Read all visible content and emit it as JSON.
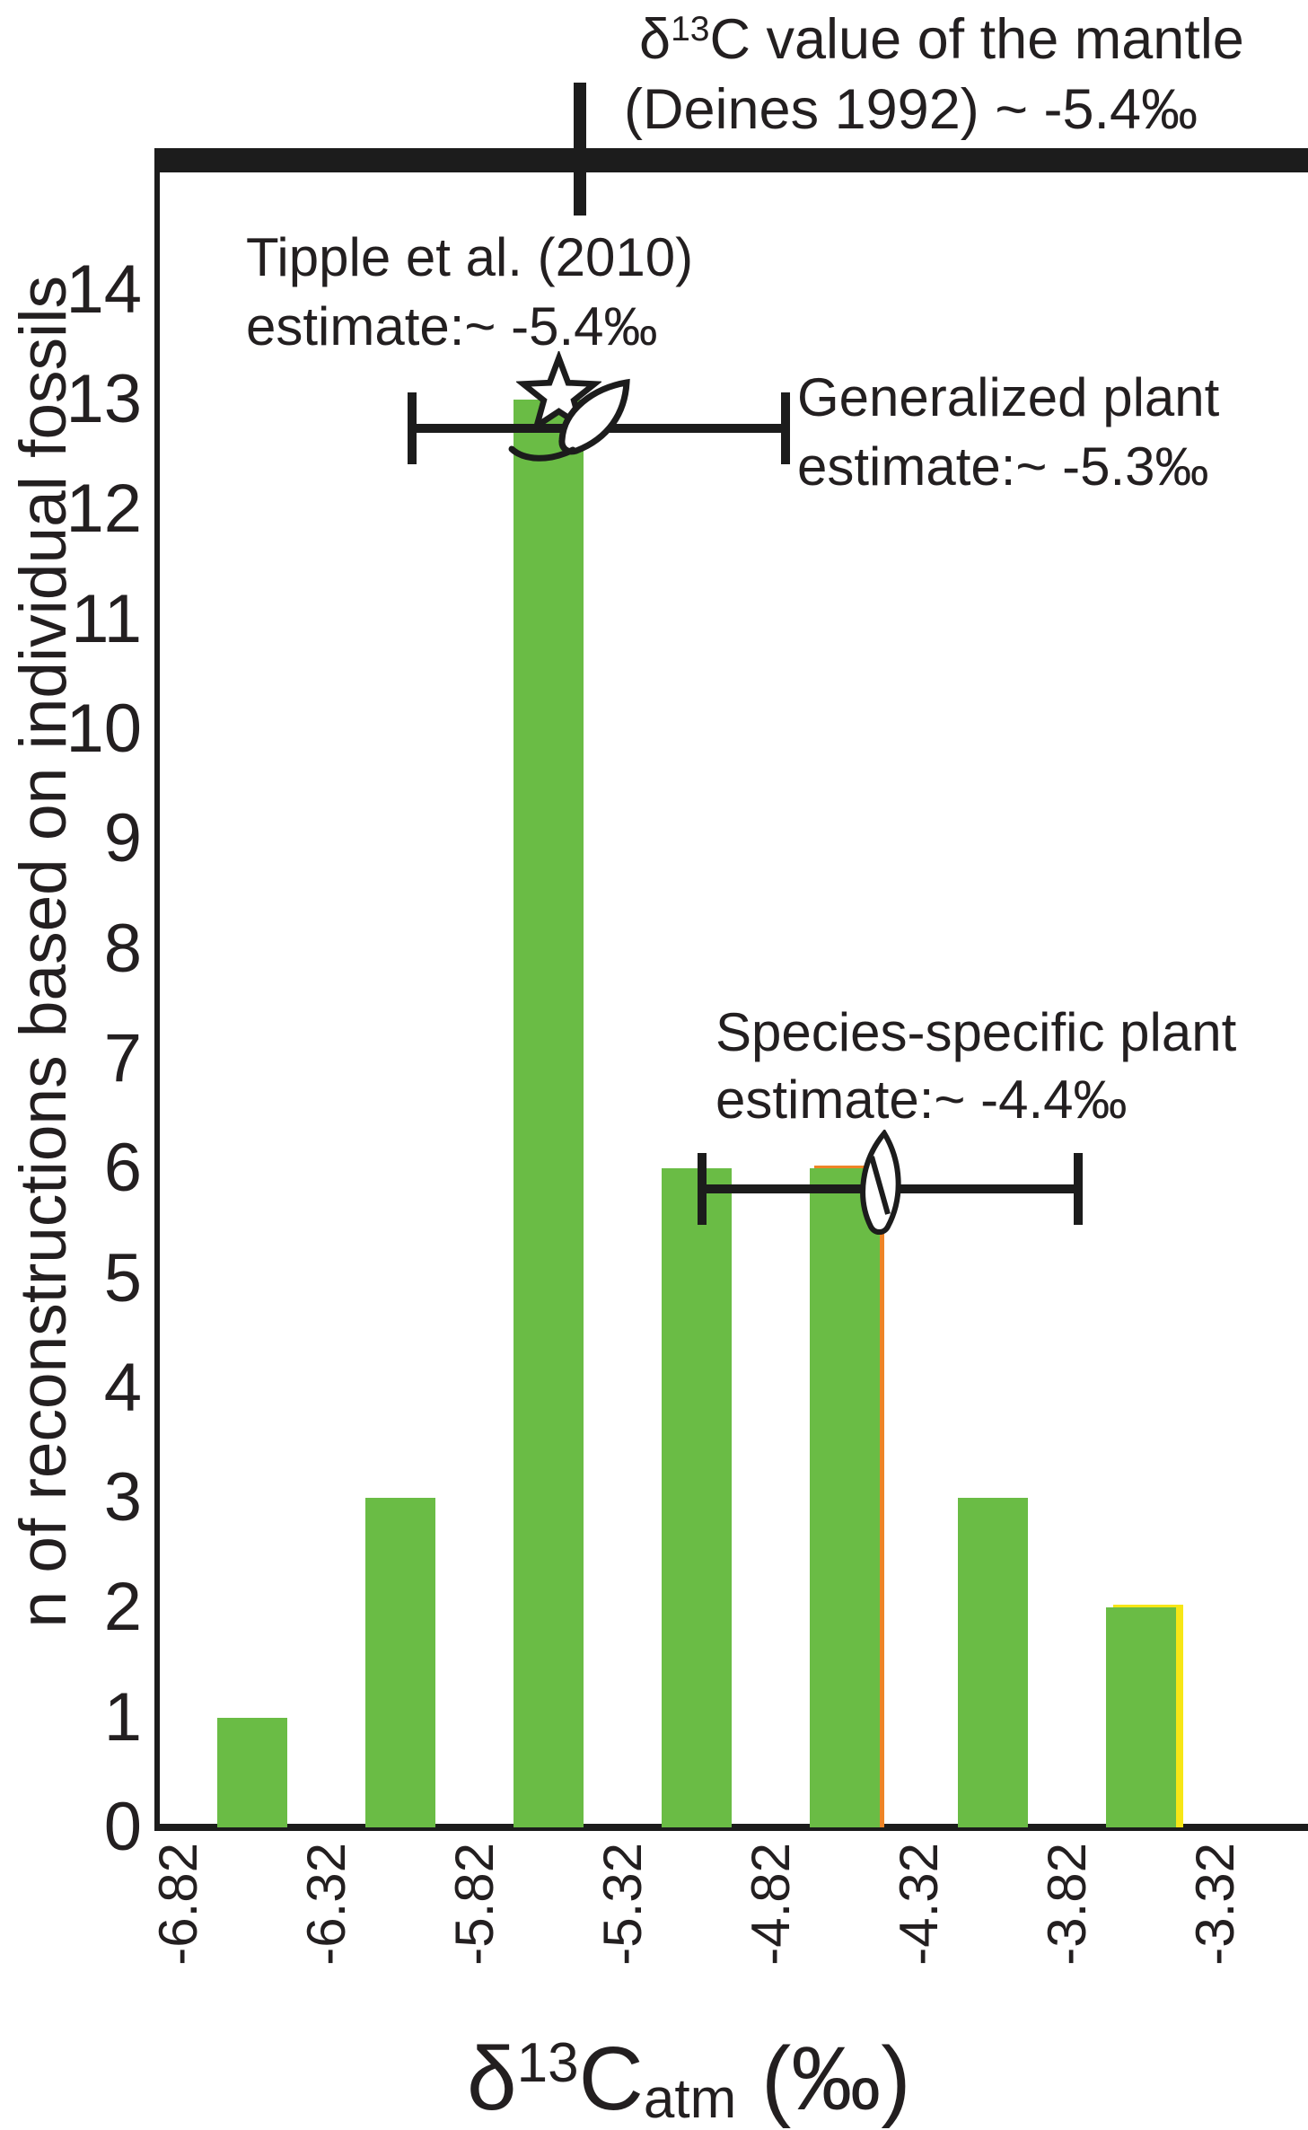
{
  "header": {
    "line1_delta": "δ",
    "line1_sup": "13",
    "line1_rest": "C value of the mantle",
    "line2": "(Deines 1992) ~ -5.4‰"
  },
  "tipple": {
    "line1": "Tipple et al. (2010)",
    "line2": "estimate:~ -5.4‰"
  },
  "generalized": {
    "line1": "Generalized plant",
    "line2": "estimate:~ -5.3‰"
  },
  "species": {
    "line1": "Species-specific plant",
    "line2": "estimate:~ -4.4‰"
  },
  "xlabel_parts": {
    "delta": "δ",
    "sup": "13",
    "c": "C",
    "sub": "atm",
    "rest": " (‰)"
  },
  "ylabel": "n of reconstructions based on individual fossils",
  "colors": {
    "bar_green": "#6abc45",
    "overlay_orange": "#ee8426",
    "overlay_yellow": "#f6e616",
    "ink": "#1c1c1c"
  },
  "chart_data": {
    "type": "bar",
    "title": "δ13C value of the mantle (Deines 1992) ~ -5.4‰",
    "xlabel": "δ13Catm (‰)",
    "ylabel": "n of reconstructions based on individual fossils",
    "bin_edges": [
      -6.82,
      -6.32,
      -5.82,
      -5.32,
      -4.82,
      -4.32,
      -3.82,
      -3.32
    ],
    "x_tick_labels": [
      "-6.82",
      "-6.32",
      "-5.82",
      "-5.32",
      "-4.82",
      "-4.32",
      "-3.82",
      "-3.32"
    ],
    "counts": [
      1,
      3,
      13,
      6,
      6,
      3,
      2
    ],
    "y_ticks": [
      0,
      1,
      2,
      3,
      4,
      5,
      6,
      7,
      8,
      9,
      10,
      11,
      12,
      13,
      14
    ],
    "ylim": [
      0,
      15.3
    ],
    "xlim": [
      -6.89,
      -3.0
    ],
    "grid": false,
    "overlay_bars": [
      {
        "bin": 4,
        "count": 6,
        "color_key": "overlay_orange",
        "name": "orange-overlay-bar"
      },
      {
        "bin": 6,
        "count": 2,
        "color_key": "overlay_yellow",
        "name": "yellow-overlay-bar"
      }
    ],
    "mantle_line_value": -5.4,
    "estimates": [
      {
        "id": "mantle",
        "label": "δ13C value of the mantle (Deines 1992)",
        "value": -5.4
      },
      {
        "id": "tipple",
        "label": "Tipple et al. (2010) estimate",
        "value": -5.4,
        "marker": "star"
      },
      {
        "id": "generalized",
        "label": "Generalized plant estimate",
        "value": -5.3,
        "marker": "leaf"
      },
      {
        "id": "species",
        "label": "Species-specific plant estimate",
        "value": -4.4,
        "marker": "leaf"
      }
    ],
    "error_bars": [
      {
        "label": "generalized-plant",
        "x_min": -6.03,
        "x_max": -4.77,
        "y": 12.74
      },
      {
        "label": "species-specific-plant",
        "x_min": -5.05,
        "x_max": -3.78,
        "y": 5.81
      }
    ]
  }
}
